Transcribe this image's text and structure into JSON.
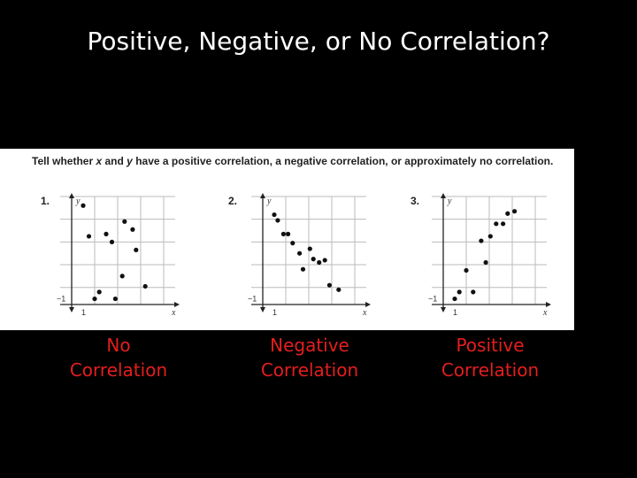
{
  "title": "Positive, Negative, or No Correlation?",
  "instructions": {
    "part1": "Tell whether ",
    "var_x": "x",
    "and": " and ",
    "var_y": "y",
    "part2": " have a positive correlation, a negative correlation, or approximately no correlation."
  },
  "answers": [
    {
      "line1": "No",
      "line2": "Correlation"
    },
    {
      "line1": "Negative",
      "line2": "Correlation"
    },
    {
      "line1": "Positive",
      "line2": "Correlation"
    }
  ],
  "chart_data": [
    {
      "type": "scatter",
      "number": "1.",
      "xlabel": "x",
      "ylabel": "y",
      "x_tick_label": "1",
      "y_tick_label": "−1",
      "xlim": [
        -1,
        9
      ],
      "ylim": [
        -1.5,
        8
      ],
      "grid": true,
      "x": [
        1,
        1.5,
        2,
        2.4,
        3.5,
        3,
        4.4,
        4.6,
        5.3,
        5.6,
        6.4,
        3.8
      ],
      "y": [
        7.2,
        4.5,
        -1,
        -0.4,
        4,
        4.7,
        1,
        5.8,
        5.1,
        3.3,
        0.1,
        -1
      ]
    },
    {
      "type": "scatter",
      "number": "2.",
      "xlabel": "x",
      "ylabel": "y",
      "x_tick_label": "1",
      "y_tick_label": "−1",
      "xlim": [
        -1,
        9
      ],
      "ylim": [
        -1.5,
        8
      ],
      "grid": true,
      "x": [
        1,
        1.3,
        1.8,
        2.2,
        2.6,
        3.2,
        3.5,
        4.1,
        4.4,
        4.9,
        5.4,
        5.8,
        6.6
      ],
      "y": [
        6.4,
        5.9,
        4.7,
        4.7,
        3.9,
        3,
        1.6,
        3.4,
        2.5,
        2.2,
        2.4,
        0.2,
        -0.2
      ]
    },
    {
      "type": "scatter",
      "number": "3.",
      "xlabel": "x",
      "ylabel": "y",
      "x_tick_label": "1",
      "y_tick_label": "−1",
      "xlim": [
        -1,
        9
      ],
      "ylim": [
        -1.5,
        8
      ],
      "grid": true,
      "x": [
        1,
        1.4,
        2,
        2.6,
        3.3,
        3.7,
        4.1,
        4.6,
        5.2,
        5.6,
        6.2
      ],
      "y": [
        -1,
        -0.4,
        1.5,
        -0.4,
        4.1,
        2.2,
        4.5,
        5.6,
        5.6,
        6.5,
        6.7
      ]
    }
  ]
}
